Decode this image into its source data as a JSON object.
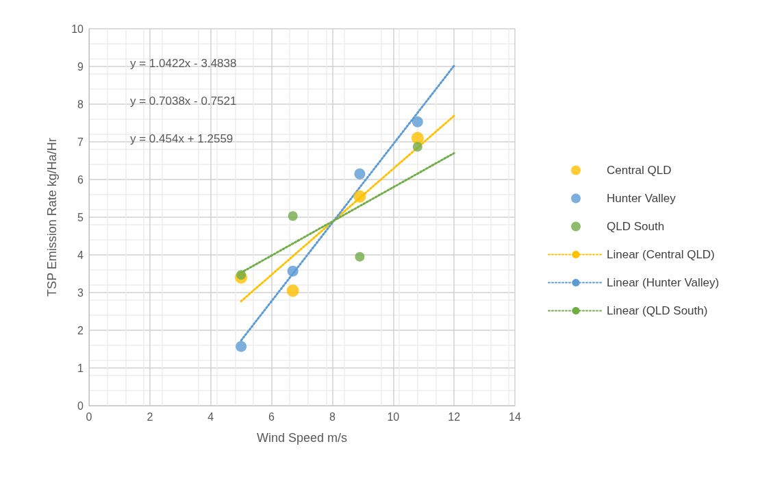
{
  "chart_data": {
    "type": "scatter",
    "xlabel": "Wind Speed m/s",
    "ylabel": "TSP Emission Rate kg/Ha/Hr",
    "xlim": [
      0,
      14
    ],
    "xticks": [
      0,
      2,
      4,
      6,
      8,
      10,
      12,
      14
    ],
    "ylim": [
      0,
      10
    ],
    "yticks": [
      0,
      1,
      2,
      3,
      4,
      5,
      6,
      7,
      8,
      9,
      10
    ],
    "grid": true,
    "legend": "right",
    "marker": "circle",
    "series": [
      {
        "name": "Central QLD",
        "color": "#ffc000",
        "x": [
          5,
          6.7,
          8.9,
          10.8
        ],
        "values": [
          3.4,
          3.05,
          5.55,
          7.1
        ]
      },
      {
        "name": "Hunter Valley",
        "color": "#5b9bd5",
        "x": [
          5,
          6.7,
          8.9,
          10.8
        ],
        "values": [
          1.57,
          3.57,
          6.15,
          7.53
        ]
      },
      {
        "name": "QLD South",
        "color": "#70ad47",
        "x": [
          5,
          6.7,
          8.9,
          10.8
        ],
        "values": [
          3.47,
          5.03,
          3.95,
          6.87
        ]
      },
      {
        "name": "Linear (Central QLD)",
        "type": "line",
        "color": "#ffc000",
        "line_style": "dotted",
        "marker": "none",
        "x": [
          5,
          12
        ],
        "values": [
          2.77,
          7.69
        ]
      },
      {
        "name": "Linear (Hunter Valley)",
        "type": "line",
        "color": "#5b9bd5",
        "line_style": "dotted",
        "marker": "none",
        "x": [
          5,
          12
        ],
        "values": [
          1.73,
          9.02
        ]
      },
      {
        "name": "Linear (QLD South)",
        "type": "line",
        "color": "#70ad47",
        "line_style": "dotted",
        "marker": "none",
        "x": [
          5,
          12
        ],
        "values": [
          3.53,
          6.7
        ]
      }
    ],
    "annotations": [
      "y = 1.0422x - 3.4838",
      "y = 0.7038x - 0.7521",
      "y = 0.454x + 1.2559"
    ]
  }
}
